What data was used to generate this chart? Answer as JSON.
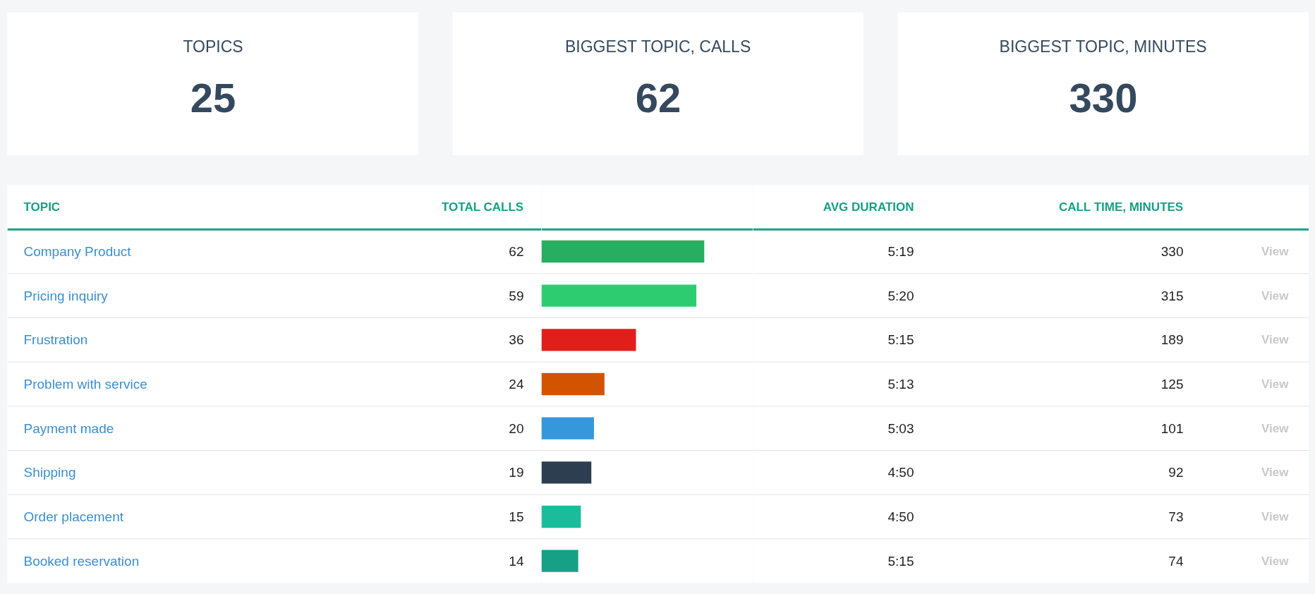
{
  "chart_data": [
    {
      "type": "other",
      "title": "TOPICS",
      "annotations": [
        "25"
      ],
      "color": "#34495e"
    },
    {
      "type": "other",
      "title": "BIGGEST TOPIC, CALLS",
      "annotations": [
        "62"
      ],
      "color": "#34495e"
    },
    {
      "type": "other",
      "title": "BIGGEST TOPIC, MINUTES",
      "annotations": [
        "330"
      ],
      "color": "#34495e"
    },
    {
      "type": "bar",
      "orientation": "horizontal",
      "ylabel": "TOPIC",
      "xlabel": "TOTAL CALLS",
      "data_labels": true,
      "categories": [
        "Company Product",
        "Pricing inquiry",
        "Frustration",
        "Problem with service",
        "Payment made",
        "Shipping",
        "Order placement",
        "Booked reservation"
      ],
      "values": [
        62,
        59,
        36,
        24,
        20,
        19,
        15,
        14
      ],
      "colors": [
        "#27ae60",
        "#2ecc71",
        "#e01f1a",
        "#d35400",
        "#3498db",
        "#2c3e50",
        "#1abc9c",
        "#16a085"
      ]
    },
    {
      "type": "other",
      "title": "AVG DURATION",
      "annotations": [
        "5:19",
        "5:20",
        "5:15",
        "5:13",
        "5:03",
        "4:50",
        "4:50",
        "5:15"
      ],
      "color": "#222222"
    },
    {
      "type": "other",
      "title": "CALL TIME, MINUTES",
      "annotations": [
        "330",
        "315",
        "189",
        "125",
        "101",
        "92",
        "73",
        "74"
      ],
      "color": "#222222"
    },
    {
      "type": "other",
      "annotations": [
        "View",
        "View",
        "View",
        "View",
        "View",
        "View",
        "View",
        "View"
      ],
      "color": "#c8c8c8"
    }
  ]
}
